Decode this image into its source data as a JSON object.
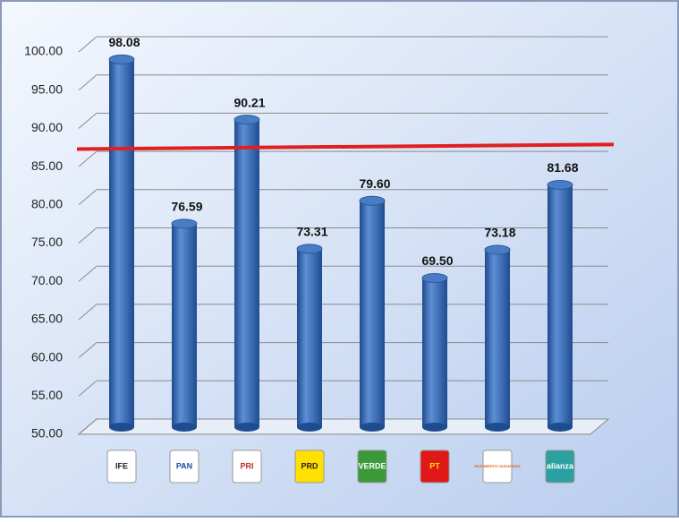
{
  "chart_data": {
    "type": "bar",
    "categories": [
      "IFE",
      "PAN",
      "PRI",
      "PRD",
      "VERDE",
      "PT",
      "MOVIMIENTO CIUDADANO",
      "alianza"
    ],
    "values": [
      98.08,
      76.59,
      90.21,
      73.31,
      79.6,
      69.5,
      73.18,
      81.68
    ],
    "value_labels": [
      "98.08",
      "76.59",
      "90.21",
      "73.31",
      "79.60",
      "69.50",
      "73.18",
      "81.68"
    ],
    "color": "#3f6fb5",
    "ylim": [
      50,
      100
    ],
    "yticks": [
      {
        "value": 50,
        "label": "50.00"
      },
      {
        "value": 55,
        "label": "55.00"
      },
      {
        "value": 60,
        "label": "60.00"
      },
      {
        "value": 65,
        "label": "65.00"
      },
      {
        "value": 70,
        "label": "70.00"
      },
      {
        "value": 75,
        "label": "75.00"
      },
      {
        "value": 80,
        "label": "80.00"
      },
      {
        "value": 85,
        "label": "85.00"
      },
      {
        "value": 90,
        "label": "90.00"
      },
      {
        "value": 95,
        "label": "95.00"
      },
      {
        "value": 100,
        "label": "100.00"
      }
    ],
    "grid": true,
    "reference_line": {
      "color": "#e02020",
      "values": [
        87.3,
        87.9
      ]
    }
  }
}
